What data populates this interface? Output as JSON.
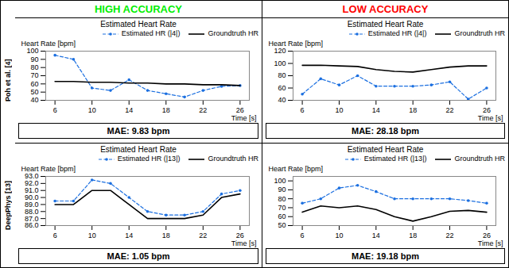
{
  "chart_data": [
    {
      "type": "line",
      "title": "Estimated Heart Rate",
      "xlabel": "Time [s]",
      "ylabel": "Heart Rate [bpm]",
      "column_title": {
        "text": "HIGH ACCURACY",
        "color": "#00EE00"
      },
      "row_label": "Poh et al. [4]",
      "annotations": [
        "MAE: 9.83 bpm"
      ],
      "x": [
        6,
        8,
        10,
        12,
        14,
        16,
        18,
        20,
        22,
        24,
        26
      ],
      "series": [
        {
          "name": "Estimated HR (|4|)",
          "color": "#1B6FE0",
          "line_style": "dashed",
          "marker": "o",
          "values": [
            95,
            90,
            55,
            52,
            65,
            52,
            48,
            44,
            52,
            57,
            58
          ]
        },
        {
          "name": "Groundtruth HR",
          "color": "#000000",
          "line_style": "solid",
          "values": [
            63,
            63,
            62,
            62,
            61,
            61,
            60,
            60,
            59,
            59,
            58
          ]
        }
      ],
      "xlim": [
        5,
        27
      ],
      "xticks": [
        6,
        10,
        14,
        18,
        22,
        26
      ],
      "ylim": [
        40,
        100
      ],
      "yticks": [
        40,
        50,
        60,
        70,
        80,
        90,
        100
      ],
      "legend": "upper right",
      "grid": false
    },
    {
      "type": "line",
      "title": "Estimated Heart Rate",
      "xlabel": "Time [s]",
      "ylabel": "Heart Rate [bpm]",
      "column_title": {
        "text": "LOW ACCURACY",
        "color": "#FF0000"
      },
      "annotations": [
        "MAE: 28.18 bpm"
      ],
      "x": [
        6,
        8,
        10,
        12,
        14,
        16,
        18,
        20,
        22,
        24,
        26
      ],
      "series": [
        {
          "name": "Estimated HR (|4|)",
          "color": "#1B6FE0",
          "line_style": "dashed",
          "marker": "o",
          "values": [
            50,
            75,
            65,
            80,
            63,
            63,
            63,
            65,
            70,
            42,
            60
          ]
        },
        {
          "name": "Groundtruth HR",
          "color": "#000000",
          "line_style": "solid",
          "values": [
            97,
            97,
            96,
            95,
            90,
            87,
            86,
            90,
            94,
            96,
            96
          ]
        }
      ],
      "xlim": [
        5,
        27
      ],
      "xticks": [
        6,
        10,
        14,
        18,
        22,
        26
      ],
      "ylim": [
        40,
        120
      ],
      "yticks": [
        40,
        60,
        80,
        100,
        120
      ],
      "legend": "upper right",
      "grid": false
    },
    {
      "type": "line",
      "title": "Estimated Heart Rate",
      "xlabel": "Time [s]",
      "ylabel": "Heart Rate [bpm]",
      "row_label": "DeepPhys [13]",
      "annotations": [
        "MAE: 1.05 bpm"
      ],
      "x": [
        6,
        8,
        10,
        12,
        14,
        16,
        18,
        20,
        22,
        24,
        26
      ],
      "series": [
        {
          "name": "Estimated HR (|13|)",
          "color": "#1B6FE0",
          "line_style": "dashed",
          "marker": "o",
          "values": [
            89.5,
            89.5,
            92.5,
            92,
            90,
            88,
            87.5,
            87.5,
            88,
            90.5,
            91
          ]
        },
        {
          "name": "Groundtruth HR",
          "color": "#000000",
          "line_style": "solid",
          "values": [
            89,
            89,
            91,
            91,
            89,
            87,
            87,
            87,
            87.5,
            90,
            90.5
          ]
        }
      ],
      "xlim": [
        5,
        27
      ],
      "xticks": [
        6,
        10,
        14,
        18,
        22,
        26
      ],
      "ylim": [
        86,
        93
      ],
      "yticks": [
        86,
        87,
        88,
        89,
        90,
        91,
        92,
        93
      ],
      "legend": "upper right",
      "grid": false
    },
    {
      "type": "line",
      "title": "Estimated Heart Rate",
      "xlabel": "Time [s]",
      "ylabel": "Heart Rate [bpm]",
      "annotations": [
        "MAE: 19.18 bpm"
      ],
      "x": [
        6,
        8,
        10,
        12,
        14,
        16,
        18,
        20,
        22,
        24,
        26
      ],
      "series": [
        {
          "name": "Estimated HR (|13|)",
          "color": "#1B6FE0",
          "line_style": "dashed",
          "marker": "o",
          "values": [
            75,
            80,
            92,
            95,
            88,
            80,
            80,
            80,
            80,
            78,
            75
          ]
        },
        {
          "name": "Groundtruth HR",
          "color": "#000000",
          "line_style": "solid",
          "values": [
            65,
            72,
            70,
            72,
            68,
            60,
            55,
            60,
            66,
            67,
            65
          ]
        }
      ],
      "xlim": [
        5,
        27
      ],
      "xticks": [
        6,
        10,
        14,
        18,
        22,
        26
      ],
      "ylim": [
        50,
        105
      ],
      "yticks": [
        50,
        60,
        70,
        80,
        90,
        100
      ],
      "legend": "upper right",
      "grid": false
    }
  ]
}
